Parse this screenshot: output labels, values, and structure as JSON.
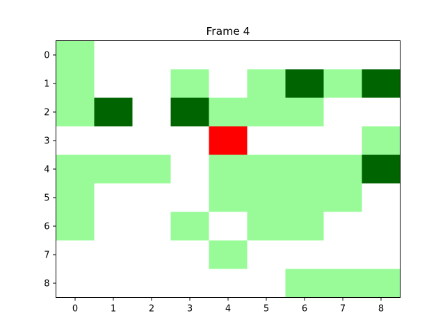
{
  "chart_data": {
    "type": "heatmap",
    "title": "Frame 4",
    "xlabel": "",
    "ylabel": "",
    "x_ticks": [
      "0",
      "1",
      "2",
      "3",
      "4",
      "5",
      "6",
      "7",
      "8"
    ],
    "y_ticks": [
      "0",
      "1",
      "2",
      "3",
      "4",
      "5",
      "6",
      "7",
      "8"
    ],
    "y_axis_direction": "top-to-bottom",
    "grid": false,
    "legend": "none",
    "colors": {
      "0": "#ffffff",
      "1": "#98fb98",
      "2": "#006400",
      "3": "#ff0000"
    },
    "color_meaning": {
      "0": "white",
      "1": "light green",
      "2": "dark green",
      "3": "red"
    },
    "grid_values": [
      [
        1,
        0,
        0,
        0,
        0,
        0,
        0,
        0,
        0
      ],
      [
        1,
        0,
        0,
        1,
        0,
        1,
        2,
        1,
        2
      ],
      [
        1,
        2,
        0,
        2,
        1,
        1,
        1,
        0,
        0
      ],
      [
        0,
        0,
        0,
        0,
        3,
        0,
        0,
        0,
        1
      ],
      [
        1,
        1,
        1,
        0,
        1,
        1,
        1,
        1,
        2
      ],
      [
        1,
        0,
        0,
        0,
        1,
        1,
        1,
        1,
        0
      ],
      [
        1,
        0,
        0,
        1,
        0,
        1,
        1,
        0,
        0
      ],
      [
        0,
        0,
        0,
        0,
        1,
        0,
        0,
        0,
        0
      ],
      [
        0,
        0,
        0,
        0,
        0,
        0,
        1,
        1,
        1
      ]
    ]
  }
}
